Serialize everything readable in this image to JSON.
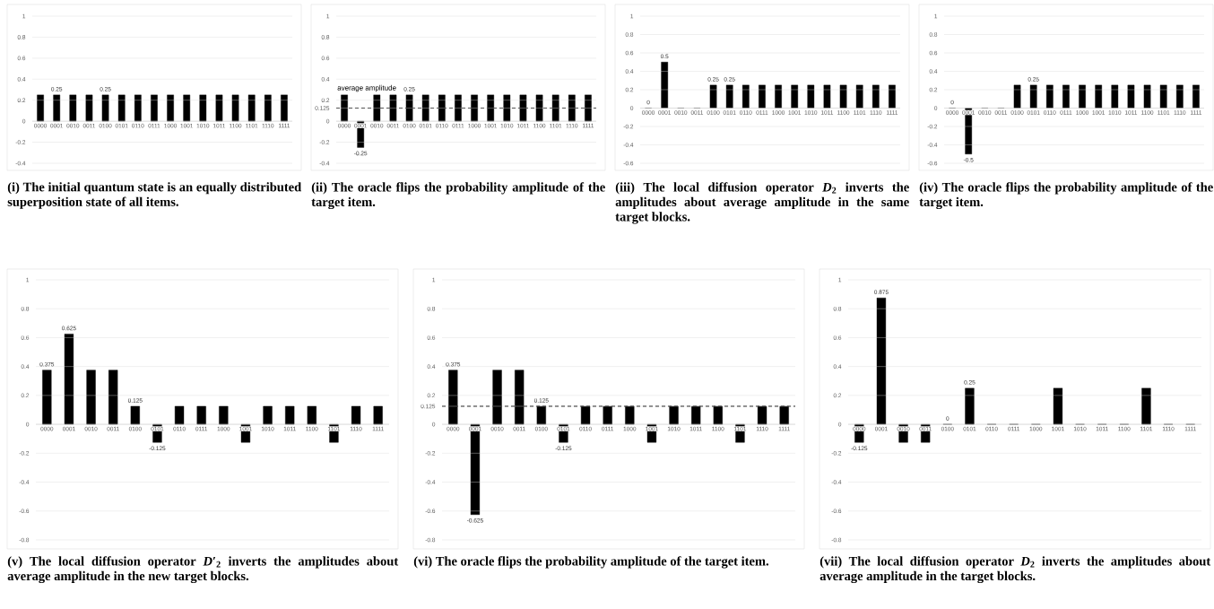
{
  "chart_data": [
    {
      "type": "bar",
      "title": "(i) The initial quantum state is an equally distributed superposition state of all items.",
      "categories": [
        "0000",
        "0001",
        "0010",
        "0011",
        "0100",
        "0101",
        "0110",
        "0111",
        "1000",
        "1001",
        "1010",
        "1011",
        "1100",
        "1101",
        "1110",
        "1111"
      ],
      "ylim": [
        -0.4,
        1
      ],
      "yticks": [
        -0.4,
        -0.2,
        0,
        0.2,
        0.4,
        0.6,
        0.8,
        1
      ],
      "grid": "y",
      "series": [
        {
          "color": "#000000",
          "values": [
            0.25,
            0.25,
            0.25,
            0.25,
            null,
            null,
            null,
            null,
            null,
            null,
            null,
            null,
            null,
            null,
            null,
            null
          ]
        },
        {
          "color": "#000000",
          "values": [
            null,
            null,
            null,
            null,
            0.25,
            0.25,
            0.25,
            0.25,
            null,
            null,
            null,
            null,
            null,
            null,
            null,
            null
          ]
        },
        {
          "color": "#000000",
          "values": [
            null,
            null,
            null,
            null,
            null,
            null,
            null,
            null,
            0.25,
            0.25,
            0.25,
            0.25,
            null,
            null,
            null,
            null
          ]
        },
        {
          "color": "#000000",
          "values": [
            null,
            null,
            null,
            null,
            null,
            null,
            null,
            null,
            null,
            null,
            null,
            null,
            0.25,
            0.25,
            0.25,
            0.25
          ]
        }
      ],
      "value_labels": [
        null,
        "0.25",
        null,
        null,
        "0.25",
        null,
        null,
        null,
        null,
        null,
        null,
        null,
        null,
        null,
        null,
        null
      ]
    },
    {
      "type": "bar",
      "title": "(ii) The oracle flips the probability amplitude of the target item.",
      "categories": [
        "0000",
        "0001",
        "0010",
        "0011",
        "0100",
        "0101",
        "0110",
        "0111",
        "1000",
        "1001",
        "1010",
        "1011",
        "1100",
        "1101",
        "1110",
        "1111"
      ],
      "ylim": [
        -0.4,
        1
      ],
      "yticks": [
        -0.4,
        -0.2,
        0,
        0.125,
        0.2,
        0.4,
        0.6,
        0.8,
        1
      ],
      "grid": "y",
      "series": [
        {
          "color": "#000000",
          "values": [
            0.25,
            -0.25,
            0.25,
            0.25,
            null,
            null,
            null,
            null,
            null,
            null,
            null,
            null,
            null,
            null,
            null,
            null
          ]
        },
        {
          "color": "#000000",
          "values": [
            null,
            null,
            null,
            null,
            0.25,
            0.25,
            0.25,
            0.25,
            null,
            null,
            null,
            null,
            null,
            null,
            null,
            null
          ]
        },
        {
          "color": "#000000",
          "values": [
            null,
            null,
            null,
            null,
            null,
            null,
            null,
            null,
            0.25,
            0.25,
            0.25,
            0.25,
            null,
            null,
            null,
            null
          ]
        },
        {
          "color": "#000000",
          "values": [
            null,
            null,
            null,
            null,
            null,
            null,
            null,
            null,
            null,
            null,
            null,
            null,
            0.25,
            0.25,
            0.25,
            0.25
          ]
        }
      ],
      "value_labels": [
        null,
        "-0.25",
        null,
        null,
        "0.25",
        null,
        null,
        null,
        null,
        null,
        null,
        null,
        null,
        null,
        null,
        null
      ],
      "ref_lines": [
        {
          "axis": "y",
          "value": 0.125,
          "label": "average amplitude",
          "color": "#000000",
          "line_style": "dashed"
        }
      ]
    },
    {
      "type": "bar",
      "title": "(iii) The local diffusion operator *D*$_{2}$ inverts the amplitudes about average amplitude in the same target blocks.",
      "categories": [
        "0000",
        "0001",
        "0010",
        "0011",
        "0100",
        "0101",
        "0110",
        "0111",
        "1000",
        "1001",
        "1010",
        "1011",
        "1100",
        "1101",
        "1110",
        "1111"
      ],
      "ylim": [
        -0.6,
        1
      ],
      "yticks": [
        -0.6,
        -0.4,
        -0.2,
        0,
        0.2,
        0.4,
        0.6,
        0.8,
        1
      ],
      "grid": "y",
      "series": [
        {
          "color": "#000000",
          "values": [
            0,
            0.5,
            0,
            0,
            null,
            null,
            null,
            null,
            null,
            null,
            null,
            null,
            null,
            null,
            null,
            null
          ]
        },
        {
          "color": "#000000",
          "values": [
            null,
            null,
            null,
            null,
            0.25,
            0.25,
            0.25,
            0.25,
            null,
            null,
            null,
            null,
            null,
            null,
            null,
            null
          ]
        },
        {
          "color": "#000000",
          "values": [
            null,
            null,
            null,
            null,
            null,
            null,
            null,
            null,
            0.25,
            0.25,
            0.25,
            0.25,
            null,
            null,
            null,
            null
          ]
        },
        {
          "color": "#000000",
          "values": [
            null,
            null,
            null,
            null,
            null,
            null,
            null,
            null,
            null,
            null,
            null,
            null,
            0.25,
            0.25,
            0.25,
            0.25
          ]
        }
      ],
      "value_labels": [
        "0",
        "0.5",
        null,
        null,
        "0.25",
        "0.25",
        null,
        null,
        null,
        null,
        null,
        null,
        null,
        null,
        null,
        null
      ]
    },
    {
      "type": "bar",
      "title": "(iv) The oracle flips the probability amplitude of the target item.",
      "categories": [
        "0000",
        "0001",
        "0010",
        "0011",
        "0100",
        "0101",
        "0110",
        "0111",
        "1000",
        "1001",
        "1010",
        "1011",
        "1100",
        "1101",
        "1110",
        "1111"
      ],
      "ylim": [
        -0.6,
        1
      ],
      "yticks": [
        -0.6,
        -0.4,
        -0.2,
        0,
        0.2,
        0.4,
        0.6,
        0.8,
        1
      ],
      "grid": "y",
      "series": [
        {
          "color": "#000000",
          "values": [
            0,
            -0.5,
            0,
            0,
            null,
            0.25,
            null,
            null,
            null,
            0.25,
            null,
            null,
            null,
            0.25,
            null,
            null
          ]
        },
        {
          "color": "#000000",
          "values": [
            null,
            null,
            null,
            null,
            0.25,
            null,
            null,
            null,
            0.25,
            null,
            null,
            null,
            0.25,
            null,
            null,
            null
          ]
        },
        {
          "color": "#000000",
          "values": [
            null,
            null,
            null,
            null,
            null,
            null,
            0.25,
            null,
            null,
            null,
            0.25,
            null,
            null,
            null,
            0.25,
            null
          ]
        },
        {
          "color": "#000000",
          "values": [
            null,
            null,
            null,
            null,
            null,
            null,
            null,
            0.25,
            null,
            null,
            null,
            0.25,
            null,
            null,
            null,
            0.25
          ]
        }
      ],
      "value_labels": [
        "0",
        "-0.5",
        null,
        null,
        null,
        "0.25",
        null,
        null,
        null,
        null,
        null,
        null,
        null,
        null,
        null,
        null
      ]
    },
    {
      "type": "bar",
      "title": "(v) The local diffusion operator *D*′$_{2}$ inverts the amplitudes about average amplitude in the new target blocks.",
      "categories": [
        "0000",
        "0001",
        "0010",
        "0011",
        "0100",
        "0101",
        "0110",
        "0111",
        "1000",
        "1001",
        "1010",
        "1011",
        "1100",
        "1101",
        "1110",
        "1111"
      ],
      "ylim": [
        -0.8,
        1
      ],
      "yticks": [
        -0.8,
        -0.6,
        -0.4,
        -0.2,
        0,
        0.2,
        0.4,
        0.6,
        0.8,
        1
      ],
      "grid": "y",
      "series": [
        {
          "color": "#000000",
          "values": [
            null,
            0.625,
            null,
            null,
            null,
            -0.125,
            null,
            null,
            null,
            -0.125,
            null,
            null,
            null,
            -0.125,
            null,
            null
          ]
        },
        {
          "color": "#000000",
          "values": [
            0.375,
            null,
            null,
            null,
            0.125,
            null,
            null,
            null,
            0.125,
            null,
            null,
            null,
            0.125,
            null,
            null,
            null
          ]
        },
        {
          "color": "#000000",
          "values": [
            null,
            null,
            0.375,
            null,
            null,
            null,
            0.125,
            null,
            null,
            null,
            0.125,
            null,
            null,
            null,
            0.125,
            null
          ]
        },
        {
          "color": "#000000",
          "values": [
            null,
            null,
            null,
            0.375,
            null,
            null,
            null,
            0.125,
            null,
            null,
            null,
            0.125,
            null,
            null,
            null,
            0.125
          ]
        }
      ],
      "value_labels": [
        "0.375",
        "0.625",
        null,
        null,
        "0.125",
        "-0.125",
        null,
        null,
        null,
        null,
        null,
        null,
        null,
        null,
        null,
        null
      ]
    },
    {
      "type": "bar",
      "title": "(vi) The oracle flips the probability amplitude of the target item.",
      "categories": [
        "0000",
        "0001",
        "0010",
        "0011",
        "0100",
        "0101",
        "0110",
        "0111",
        "1000",
        "1001",
        "1010",
        "1011",
        "1100",
        "1101",
        "1110",
        "1111"
      ],
      "ylim": [
        -0.8,
        1
      ],
      "yticks": [
        -0.8,
        -0.6,
        -0.4,
        -0.2,
        0,
        0.125,
        0.2,
        0.4,
        0.6,
        0.8,
        1
      ],
      "grid": "y",
      "series": [
        {
          "color": "#000000",
          "values": [
            0.375,
            -0.625,
            0.375,
            0.375,
            null,
            null,
            null,
            null,
            null,
            null,
            null,
            null,
            null,
            null,
            null,
            null
          ]
        },
        {
          "color": "#000000",
          "values": [
            null,
            null,
            null,
            null,
            0.125,
            -0.125,
            0.125,
            0.125,
            null,
            null,
            null,
            null,
            null,
            null,
            null,
            null
          ]
        },
        {
          "color": "#000000",
          "values": [
            null,
            null,
            null,
            null,
            null,
            null,
            null,
            null,
            0.125,
            -0.125,
            0.125,
            0.125,
            null,
            null,
            null,
            null
          ]
        },
        {
          "color": "#000000",
          "values": [
            null,
            null,
            null,
            null,
            null,
            null,
            null,
            null,
            null,
            null,
            null,
            null,
            0.125,
            -0.125,
            0.125,
            0.125
          ]
        }
      ],
      "value_labels": [
        "0.375",
        "-0.625",
        null,
        null,
        "0.125",
        "-0.125",
        null,
        null,
        null,
        null,
        null,
        null,
        null,
        null,
        null,
        null
      ],
      "ref_lines": [
        {
          "axis": "y",
          "value": 0.125,
          "color": "#000000",
          "line_style": "dashed"
        }
      ]
    },
    {
      "type": "bar",
      "title": "(vii) The local diffusion operator *D*$_{2}$ inverts the amplitudes about average amplitude in the target blocks.",
      "categories": [
        "0000",
        "0001",
        "0010",
        "0011",
        "0100",
        "0101",
        "0110",
        "0111",
        "1000",
        "1001",
        "1010",
        "1011",
        "1100",
        "1101",
        "1110",
        "1111"
      ],
      "ylim": [
        -0.8,
        1
      ],
      "yticks": [
        -0.8,
        -0.6,
        -0.4,
        -0.2,
        0,
        0.2,
        0.4,
        0.6,
        0.8,
        1
      ],
      "grid": "y",
      "series": [
        {
          "color": "#000000",
          "values": [
            -0.125,
            0.875,
            -0.125,
            -0.125,
            null,
            null,
            null,
            null,
            null,
            null,
            null,
            null,
            null,
            null,
            null,
            null
          ]
        },
        {
          "color": "#000000",
          "values": [
            null,
            null,
            null,
            null,
            0,
            0.25,
            0,
            0,
            null,
            null,
            null,
            null,
            null,
            null,
            null,
            null
          ]
        },
        {
          "color": "#000000",
          "values": [
            null,
            null,
            null,
            null,
            null,
            null,
            null,
            null,
            0,
            0.25,
            0,
            0,
            null,
            null,
            null,
            null
          ]
        },
        {
          "color": "#000000",
          "values": [
            null,
            null,
            null,
            null,
            null,
            null,
            null,
            null,
            null,
            null,
            null,
            null,
            0,
            0.25,
            0,
            0
          ]
        }
      ],
      "value_labels": [
        "-0.125",
        "0.875",
        null,
        null,
        "0",
        "0.25",
        null,
        null,
        null,
        null,
        null,
        null,
        null,
        null,
        null,
        null
      ]
    }
  ]
}
